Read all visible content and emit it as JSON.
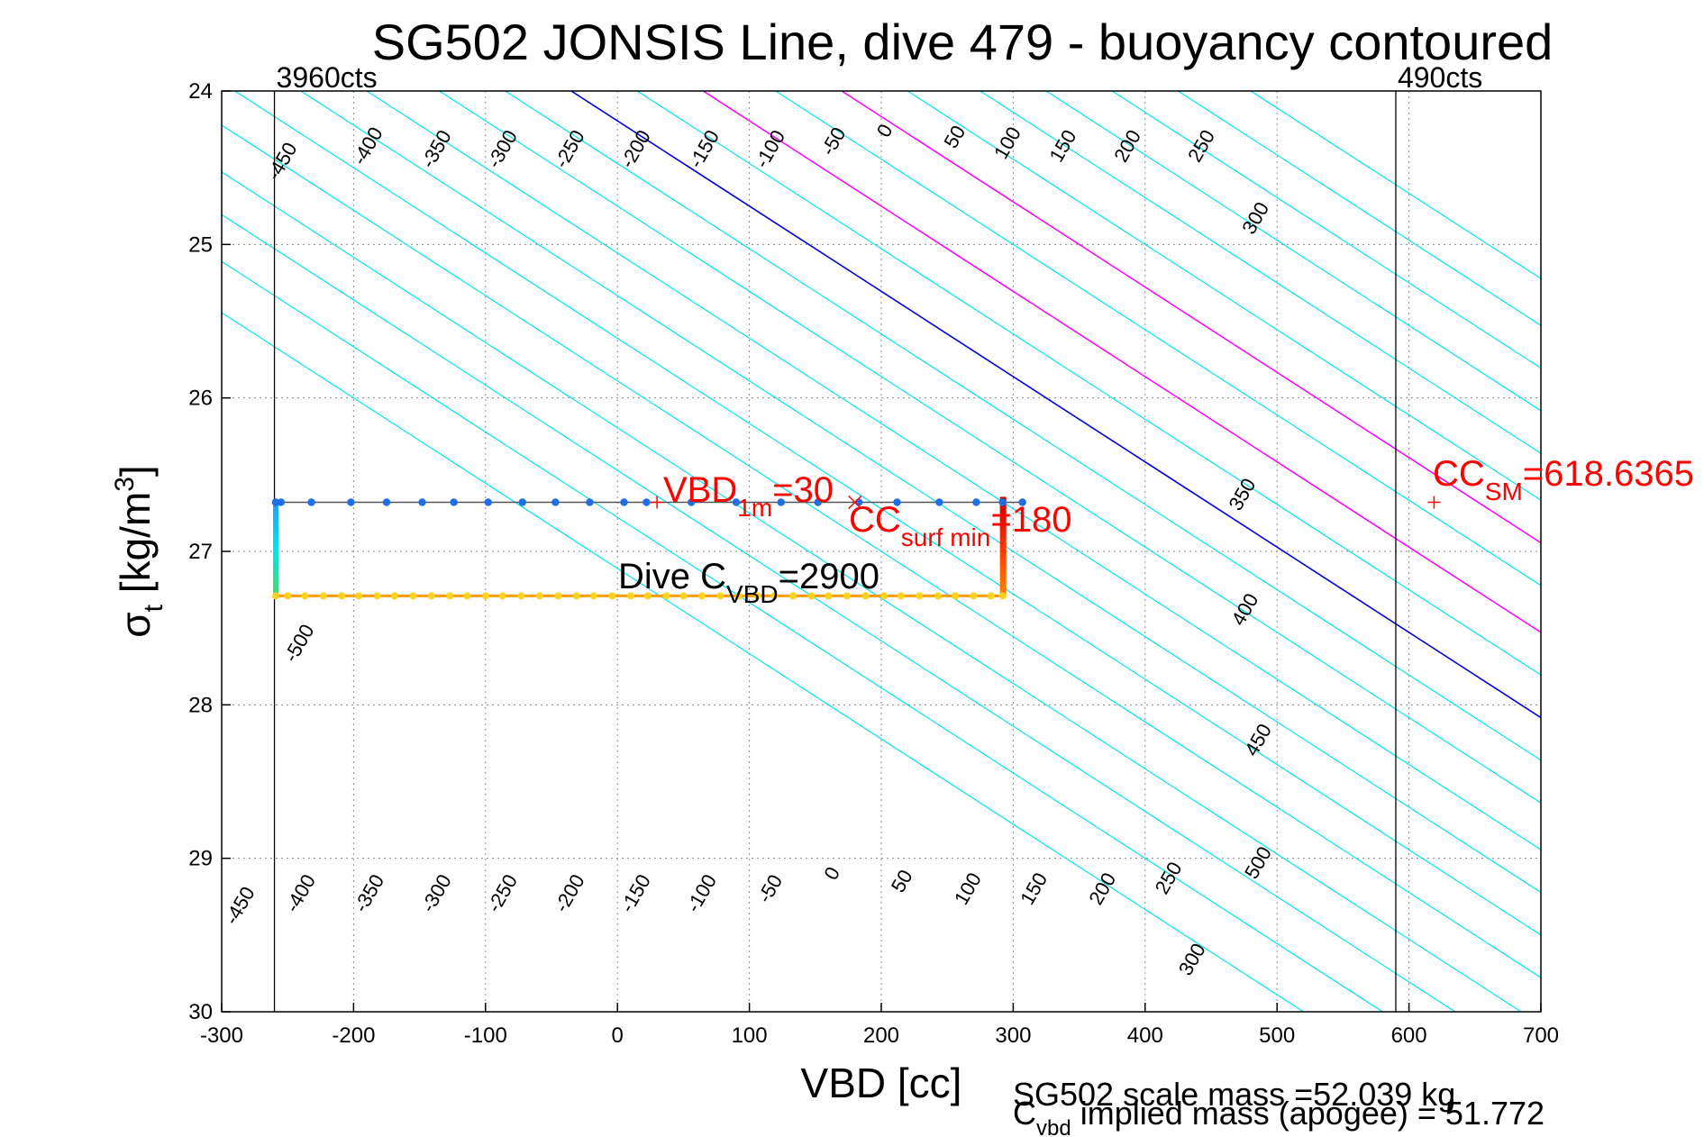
{
  "chart_data": {
    "type": "line",
    "title": "SG502 JONSIS Line, dive 479 - buoyancy contoured",
    "xlabel": "VBD [cc]",
    "ylabel_main": "σ",
    "ylabel_sub": "t",
    "ylabel_rest": " [kg/m",
    "ylabel_sup": "3",
    "ylabel_close": "]",
    "xlim": [
      -300,
      700
    ],
    "ylim": [
      24,
      30
    ],
    "y_reversed": true,
    "grid": true,
    "xticks": [
      "-300",
      "-200",
      "-100",
      "0",
      "100",
      "200",
      "300",
      "400",
      "500",
      "600",
      "700"
    ],
    "yticks": [
      "24",
      "25",
      "26",
      "27",
      "28",
      "29",
      "30"
    ],
    "colors": {
      "contour": "#00e5ee",
      "zero_contour": "#0000dd",
      "magenta_contour": "#ff00ff",
      "annotation": "#ff0000",
      "dive_path": "#555555",
      "descent_points": "#1e6fe6",
      "ascent_points": "#ffd21f"
    },
    "contour_slope_cc_per_kgm3": 180,
    "contour_levels": [
      -500,
      -450,
      -400,
      -350,
      -300,
      -250,
      -200,
      -150,
      -100,
      -50,
      0,
      50,
      100,
      150,
      200,
      250,
      300,
      350,
      400,
      450,
      500
    ],
    "contour_anchor_vbd_at_sigma24": [
      -560,
      -500,
      -445,
      -395,
      -340,
      -290,
      -240,
      -190,
      -135,
      -85,
      -35,
      15,
      65,
      120,
      170,
      220,
      275,
      325,
      375,
      425,
      480
    ],
    "magenta_levels": [
      100,
      200
    ],
    "labels_top": [
      {
        "text": "-450",
        "x": -250,
        "y": 24.48
      },
      {
        "text": "-400",
        "x": -185,
        "y": 24.38
      },
      {
        "text": "-350",
        "x": -133,
        "y": 24.4
      },
      {
        "text": "-300",
        "x": -83,
        "y": 24.4
      },
      {
        "text": "-250",
        "x": -32,
        "y": 24.4
      },
      {
        "text": "-200",
        "x": 18,
        "y": 24.4
      },
      {
        "text": "-150",
        "x": 70,
        "y": 24.4
      },
      {
        "text": "-100",
        "x": 120,
        "y": 24.4
      },
      {
        "text": "-50",
        "x": 168,
        "y": 24.35
      },
      {
        "text": "0",
        "x": 207,
        "y": 24.28
      },
      {
        "text": "50",
        "x": 260,
        "y": 24.32
      },
      {
        "text": "100",
        "x": 300,
        "y": 24.36
      },
      {
        "text": "150",
        "x": 342,
        "y": 24.38
      },
      {
        "text": "200",
        "x": 391,
        "y": 24.38
      },
      {
        "text": "250",
        "x": 447,
        "y": 24.38
      },
      {
        "text": "300",
        "x": 488,
        "y": 24.85
      }
    ],
    "labels_right": [
      {
        "text": "350",
        "x": 478,
        "y": 26.65
      },
      {
        "text": "400",
        "x": 480,
        "y": 27.4
      },
      {
        "text": "450",
        "x": 490,
        "y": 28.25
      },
      {
        "text": "500",
        "x": 490,
        "y": 29.05
      }
    ],
    "labels_bottom": [
      {
        "text": "-500",
        "x": -237,
        "y": 27.62
      },
      {
        "text": "-450",
        "x": -282,
        "y": 29.33
      },
      {
        "text": "-400",
        "x": -236,
        "y": 29.25
      },
      {
        "text": "-350",
        "x": -184,
        "y": 29.25
      },
      {
        "text": "-300",
        "x": -133,
        "y": 29.25
      },
      {
        "text": "-250",
        "x": -83,
        "y": 29.25
      },
      {
        "text": "-200",
        "x": -32,
        "y": 29.25
      },
      {
        "text": "-150",
        "x": 18,
        "y": 29.25
      },
      {
        "text": "-100",
        "x": 68,
        "y": 29.25
      },
      {
        "text": "-50",
        "x": 120,
        "y": 29.22
      },
      {
        "text": "0",
        "x": 167,
        "y": 29.12
      },
      {
        "text": "50",
        "x": 220,
        "y": 29.17
      },
      {
        "text": "100",
        "x": 270,
        "y": 29.22
      },
      {
        "text": "150",
        "x": 320,
        "y": 29.22
      },
      {
        "text": "200",
        "x": 372,
        "y": 29.22
      },
      {
        "text": "250",
        "x": 422,
        "y": 29.15
      },
      {
        "text": "300",
        "x": 440,
        "y": 29.68
      }
    ],
    "count_lines": [
      {
        "label": "3960cts",
        "x": -260
      },
      {
        "label": "490cts",
        "x": 590
      }
    ],
    "dive_path": {
      "descent": {
        "y": 26.68,
        "x_points": [
          -259,
          -255,
          -232,
          -202,
          -175,
          -148,
          -124,
          -98,
          -72,
          -47,
          -21,
          5,
          22,
          56,
          90,
          124,
          152,
          183,
          212,
          244,
          272,
          292,
          307
        ]
      },
      "ascent": {
        "y": 27.29,
        "x_points": [
          -259,
          -250,
          -237,
          -223,
          -209,
          -196,
          -182,
          -169,
          -155,
          -141,
          -127,
          -114,
          -100,
          -87,
          -73,
          -59,
          -45,
          -31,
          -18,
          -4,
          10,
          23,
          37,
          50,
          64,
          78,
          92,
          106,
          119,
          133,
          147,
          160,
          174,
          188,
          202,
          215,
          229,
          243,
          256,
          270,
          283,
          292
        ]
      },
      "right_x": 292,
      "left_x": -259
    },
    "markers": [
      {
        "kind": "plus",
        "x": 30,
        "y": 26.68
      },
      {
        "kind": "cross",
        "x": 180,
        "y": 26.68
      },
      {
        "kind": "plus",
        "x": 619,
        "y": 26.68
      }
    ],
    "annotations": {
      "vbd1m": {
        "main": "VBD",
        "sub": "1m",
        "rest": "=30"
      },
      "ccsurf": {
        "main": "CC",
        "sub": "surf min",
        "rest": "=180"
      },
      "dive": {
        "main": "Dive C",
        "sub": "VBD",
        "rest": "=2900"
      },
      "ccsm": {
        "main": "CC",
        "sub": "SM",
        "rest": "=618.6365"
      }
    },
    "footer": {
      "line1": "SG502 scale mass =52.039 kg",
      "line2_main": "C",
      "line2_sub": "vbd",
      "line2_rest": " implied mass (apogee) = 51.772"
    }
  }
}
